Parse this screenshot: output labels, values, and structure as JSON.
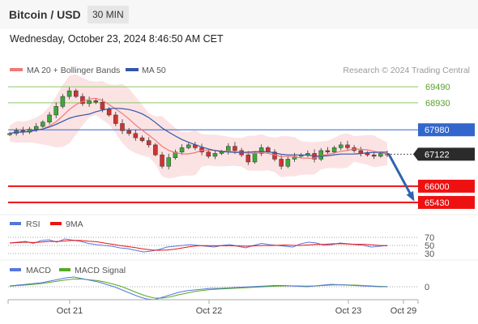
{
  "header": {
    "title": "Bitcoin / USD",
    "interval": "30 MIN"
  },
  "datetime": "Wednesday, October 23, 2024 8:46:50 AM CET",
  "legend": {
    "ma20": "MA 20 + Bollinger Bands",
    "ma50": "MA 50",
    "credit": "Research © 2024 Trading Central"
  },
  "colors": {
    "ma20": "#f07878",
    "ma50": "#3355aa",
    "bands": "#fadcdc",
    "up": "#3aaa3a",
    "down": "#d23232",
    "resistance": "#8fc86a",
    "pivot": "#3366cc",
    "support": "#ee1111",
    "rsi": "#5577dd",
    "macd": "#5577dd",
    "signal": "#55aa22"
  },
  "chart_data": {
    "type": "candlestick",
    "x_ticks": [
      "Oct 21",
      "Oct 22",
      "Oct 23",
      "Oct 29"
    ],
    "price_range": [
      65200,
      69750
    ],
    "levels": [
      {
        "value": 69490,
        "label": "69490",
        "kind": "resistance"
      },
      {
        "value": 68930,
        "label": "68930",
        "kind": "resistance"
      },
      {
        "value": 67980,
        "label": "67980",
        "kind": "pivot"
      },
      {
        "value": 66000,
        "label": "66000",
        "kind": "support"
      },
      {
        "value": 65430,
        "label": "65430",
        "kind": "support"
      }
    ],
    "current_price": {
      "value": 67122,
      "label": "67122"
    },
    "forecast": {
      "from": 67122,
      "to": 65430
    },
    "close_series": [
      67850,
      67950,
      67900,
      68000,
      68100,
      68250,
      68500,
      68800,
      69150,
      69350,
      69150,
      68900,
      69000,
      68950,
      68700,
      68500,
      68200,
      67950,
      67850,
      67700,
      67600,
      67450,
      67100,
      66700,
      67000,
      67200,
      67350,
      67450,
      67350,
      67200,
      67050,
      67150,
      67200,
      67400,
      67250,
      67100,
      66850,
      67150,
      67350,
      67200,
      66950,
      66700,
      66950,
      67050,
      67100,
      67150,
      66950,
      67250,
      67200,
      67350,
      67450,
      67350,
      67250,
      67150,
      67100,
      67050,
      67150,
      67100
    ],
    "rsi": {
      "label": "RSI",
      "ma_label": "9MA",
      "levels": [
        70,
        50,
        30
      ],
      "values": [
        56,
        58,
        60,
        55,
        62,
        64,
        58,
        66,
        63,
        60,
        55,
        52,
        50,
        48,
        44,
        42,
        38,
        34,
        36,
        40,
        46,
        48,
        50,
        52,
        50,
        48,
        46,
        50,
        52,
        48,
        44,
        50,
        55,
        52,
        50,
        48,
        46,
        54,
        58,
        56,
        50,
        52,
        56,
        54,
        52,
        50,
        46,
        48,
        50
      ]
    },
    "macd": {
      "label": "MACD",
      "signal_label": "MACD Signal",
      "zero_label": "0",
      "values": [
        20,
        40,
        60,
        80,
        100,
        140,
        180,
        220,
        240,
        200,
        160,
        120,
        60,
        0,
        -80,
        -160,
        -240,
        -300,
        -320,
        -260,
        -200,
        -140,
        -100,
        -80,
        -60,
        -40,
        -40,
        -30,
        -20,
        -10,
        0,
        10,
        20,
        30,
        30,
        20,
        10,
        0,
        20,
        40,
        60,
        50,
        40,
        30,
        20,
        10,
        0,
        0
      ],
      "signal": [
        15,
        30,
        45,
        60,
        80,
        110,
        140,
        170,
        190,
        190,
        170,
        150,
        110,
        60,
        0,
        -80,
        -160,
        -230,
        -280,
        -280,
        -250,
        -200,
        -160,
        -120,
        -90,
        -70,
        -55,
        -45,
        -35,
        -25,
        -15,
        -5,
        5,
        15,
        20,
        22,
        20,
        15,
        20,
        30,
        45,
        48,
        45,
        40,
        30,
        20,
        10,
        5
      ]
    }
  }
}
